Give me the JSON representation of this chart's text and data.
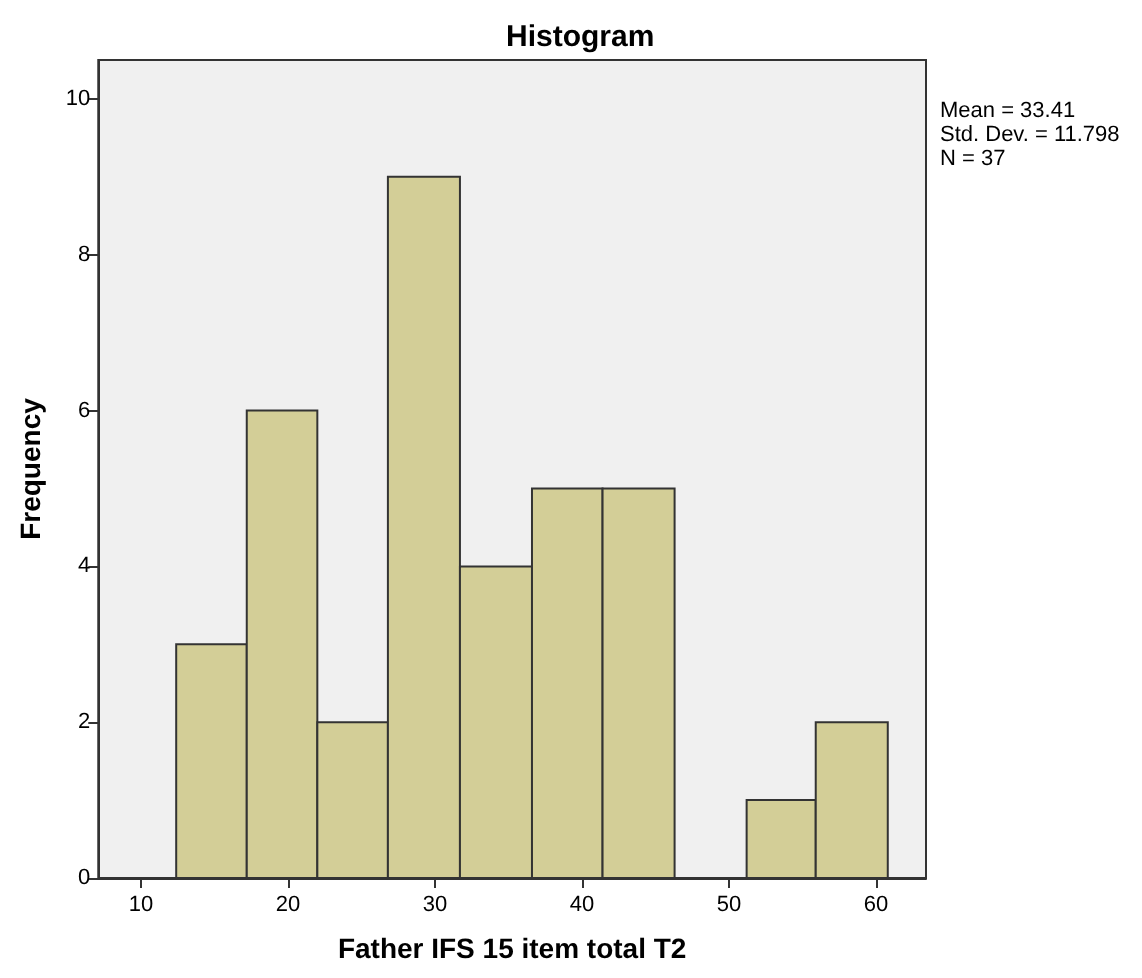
{
  "chart_data": {
    "type": "histogram",
    "title": "Histogram",
    "xlabel": "Father IFS 15 item total T2",
    "ylabel": "Frequency",
    "bins": [
      12.4,
      17.2,
      22.0,
      26.8,
      31.7,
      36.6,
      41.4,
      46.3,
      51.2,
      55.9,
      60.8
    ],
    "values": [
      3,
      6,
      2,
      9,
      4,
      5,
      5,
      0,
      1,
      2
    ],
    "color": "#d3ce97",
    "xlim": [
      7.1,
      63.4
    ],
    "xticks": [
      10,
      20,
      30,
      40,
      50,
      60
    ],
    "ylim": [
      0,
      10.5
    ],
    "yticks": [
      0,
      2,
      4,
      6,
      8,
      10
    ],
    "grid": false,
    "annotations": [
      "Mean = 33.41",
      "Std. Dev. = 11.798",
      "N = 37"
    ]
  }
}
